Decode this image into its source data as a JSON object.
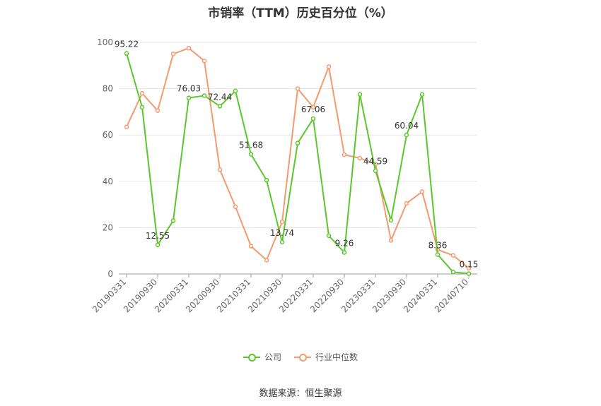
{
  "title": "市销率（TTM）历史百分位（%）",
  "source": "数据来源：恒生聚源",
  "chart_data": {
    "type": "line",
    "title": "市销率（TTM）历史百分位（%）",
    "ylim": [
      0,
      100
    ],
    "yticks": [
      0,
      20,
      40,
      60,
      80,
      100
    ],
    "grid": true,
    "legend_position": "bottom",
    "x": [
      "20190331",
      "20190630",
      "20190930",
      "20191231",
      "20200331",
      "20200630",
      "20200930",
      "20201231",
      "20210331",
      "20210630",
      "20210930",
      "20211231",
      "20220331",
      "20220630",
      "20220930",
      "20221231",
      "20230331",
      "20230630",
      "20230930",
      "20231231",
      "20240331",
      "20240630",
      "20240710"
    ],
    "x_tick_labels": [
      "20190331",
      "20190930",
      "20200331",
      "20200930",
      "20210331",
      "20210930",
      "20220331",
      "20220930",
      "20230331",
      "20230930",
      "20240331",
      "20240710"
    ],
    "series": [
      {
        "name": "公司",
        "color": "#5cc72c",
        "values": [
          95.22,
          72,
          12.55,
          23,
          76.03,
          77,
          72.44,
          79,
          51.68,
          40.5,
          13.74,
          56.5,
          67.06,
          16.5,
          9.26,
          77.5,
          44.59,
          23.2,
          60.04,
          77.5,
          8.36,
          0.8,
          0.15
        ],
        "labels": {
          "0": "95.22",
          "2": "12.55",
          "4": "76.03",
          "6": "72.44",
          "8": "51.68",
          "10": "13.74",
          "12": "67.06",
          "14": "9.26",
          "16": "44.59",
          "18": "60.04",
          "20": "8.36",
          "22": "0.15"
        }
      },
      {
        "name": "行业中位数",
        "color": "#f59a6e",
        "values": [
          63.5,
          78,
          70.5,
          95,
          97.5,
          92,
          45,
          29,
          12,
          6,
          22.5,
          80,
          72,
          89.5,
          51.5,
          50,
          47.5,
          14.5,
          30.5,
          35.5,
          10.5,
          8,
          2.5
        ]
      }
    ]
  }
}
